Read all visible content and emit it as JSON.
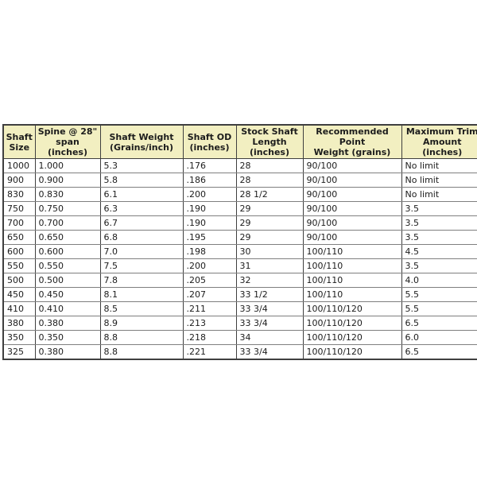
{
  "colors": {
    "header_bg": "#f2efc1",
    "border_dark": "#3f3f3f",
    "border_light": "#7f7f7f",
    "text": "#1c1c1c",
    "page_bg": "#ffffff"
  },
  "chart_data": {
    "type": "table",
    "title": "",
    "columns": [
      "Shaft\nSize",
      "Spine @ 28\"\nspan (inches)",
      "Shaft Weight\n(Grains/inch)",
      "Shaft OD\n(inches)",
      "Stock Shaft\nLength\n(inches)",
      "Recommended Point\nWeight (grains)",
      "Maximum Trim\nAmount\n(inches)"
    ],
    "rows": [
      [
        "1000",
        "1.000",
        "5.3",
        ".176",
        "28",
        "90/100",
        "No limit"
      ],
      [
        "900",
        "0.900",
        "5.8",
        ".186",
        "28",
        "90/100",
        "No limit"
      ],
      [
        "830",
        "0.830",
        "6.1",
        ".200",
        "28 1/2",
        "90/100",
        "No limit"
      ],
      [
        "750",
        "0.750",
        "6.3",
        ".190",
        "29",
        "90/100",
        "3.5"
      ],
      [
        "700",
        "0.700",
        "6.7",
        ".190",
        "29",
        "90/100",
        "3.5"
      ],
      [
        "650",
        "0.650",
        "6.8",
        ".195",
        "29",
        "90/100",
        "3.5"
      ],
      [
        "600",
        "0.600",
        "7.0",
        ".198",
        "30",
        "100/110",
        "4.5"
      ],
      [
        "550",
        "0.550",
        "7.5",
        ".200",
        "31",
        "100/110",
        "3.5"
      ],
      [
        "500",
        "0.500",
        "7.8",
        ".205",
        "32",
        "100/110",
        "4.0"
      ],
      [
        "450",
        "0.450",
        "8.1",
        ".207",
        "33 1/2",
        "100/110",
        "5.5"
      ],
      [
        "410",
        "0.410",
        "8.5",
        ".211",
        "33 3/4",
        "100/110/120",
        "5.5"
      ],
      [
        "380",
        "0.380",
        "8.9",
        ".213",
        "33 3/4",
        "100/110/120",
        "6.5"
      ],
      [
        "350",
        "0.350",
        "8.8",
        ".218",
        "34",
        "100/110/120",
        "6.0"
      ],
      [
        "325",
        "0.380",
        "8.8",
        ".221",
        "33 3/4",
        "100/110/120",
        "6.5"
      ]
    ],
    "layout_hints": {
      "header_background": "#f2efc1",
      "grid": true,
      "last_column_clipped_at_right_edge": true
    }
  }
}
